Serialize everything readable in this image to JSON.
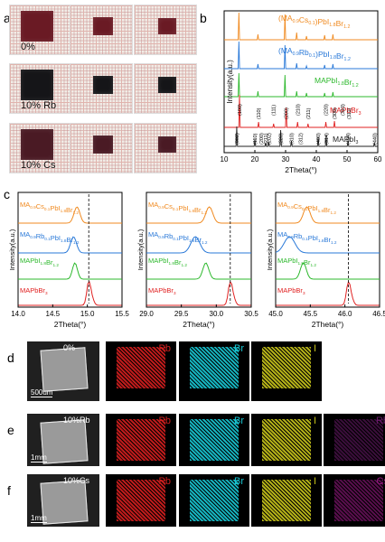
{
  "panel_a": {
    "label": "a",
    "rows": [
      {
        "caption": "0%",
        "crystal_color": "#6a1a24"
      },
      {
        "caption": "10% Rb",
        "crystal_color": "#151518"
      },
      {
        "caption": "10% Cs",
        "crystal_color": "#4a1a24"
      }
    ]
  },
  "panel_b": {
    "label": "b",
    "series_labels": [
      {
        "text": "(MA0.9Cs0.1)PbI1.8Br1.2",
        "color": "#f08a20"
      },
      {
        "text": "(MA0.9Rb0.1)PbI1.8Br1.2",
        "color": "#2878d8"
      },
      {
        "text": "MAPbI1.8Br1.2",
        "color": "#2cb82c"
      },
      {
        "text": "MAPbBr3",
        "color": "#e02020"
      },
      {
        "text": "MAPbI3",
        "color": "#222222"
      }
    ],
    "ylabel": "Intensity(a.u.)",
    "xlabel": "2Theta(°)",
    "xticks": [
      "10",
      "20",
      "30",
      "40",
      "50",
      "60"
    ],
    "red_hkl": [
      "(100)",
      "(110)",
      "(111)",
      "(200)",
      "(210)",
      "(211)",
      "(220)",
      "(300)",
      "(310)",
      "(311)"
    ],
    "black_hkl": [
      "(002)",
      "(110)",
      "(200)",
      "(211)",
      "(202)",
      "(220)",
      "(310)",
      "(312)",
      "(400)",
      "(314)",
      "(404)",
      "(440)"
    ]
  },
  "panel_c": {
    "label": "c",
    "ylabel": "Intensity(a.u.)",
    "xlabel": "2Theta(°)",
    "subplots": [
      {
        "xticks": [
          "14.0",
          "14.5",
          "15.0",
          "15.5"
        ]
      },
      {
        "xticks": [
          "29.0",
          "29.5",
          "30.0",
          "30.5"
        ]
      },
      {
        "xticks": [
          "45.0",
          "45.5",
          "46.0",
          "46.5"
        ]
      }
    ],
    "labels": {
      "cs": "MA0.9Cs0.1PbI1.8Br1.2",
      "rb": "MA0.9Rb0.1PbI1.8Br1.2",
      "mix": "MAPbI1.8Br1.2",
      "br": "MAPbBr3"
    }
  },
  "panel_d": {
    "label": "d",
    "caption": "0%",
    "scale": "500um",
    "elements": [
      "Pb",
      "Br",
      "I"
    ]
  },
  "panel_e": {
    "label": "e",
    "caption": "10%Rb",
    "scale": "1mm",
    "elements": [
      "Pb",
      "Br",
      "I",
      "Rb"
    ]
  },
  "panel_f": {
    "label": "f",
    "caption": "10%Cs",
    "scale": "1mm",
    "elements": [
      "Pb",
      "Br",
      "I",
      "Cs"
    ]
  },
  "colors": {
    "cs": "#f08a20",
    "rb": "#2878d8",
    "mix": "#2cb82c",
    "br": "#e02020",
    "i3": "#222222",
    "pb": "#d21f1f",
    "brmap": "#19c6d2",
    "imap": "#c6c21b",
    "rbmap": "#6a1a6a",
    "csmap": "#a01a8a"
  },
  "chart_data": [
    {
      "type": "line",
      "title": "",
      "xlabel": "2Theta(°)",
      "ylabel": "Intensity(a.u.)",
      "xlim": [
        10,
        60
      ],
      "series": [
        {
          "name": "(MA0.9Cs0.1)PbI1.8Br1.2",
          "peaks_2theta": [
            14.8,
            21.0,
            29.8,
            33.6,
            36.8,
            42.7,
            45.4
          ]
        },
        {
          "name": "(MA0.9Rb0.1)PbI1.8Br1.2",
          "peaks_2theta": [
            14.8,
            21.0,
            29.8,
            33.6,
            36.8,
            42.7,
            45.4
          ]
        },
        {
          "name": "MAPbI1.8Br1.2",
          "peaks_2theta": [
            14.8,
            21.0,
            29.8,
            33.6,
            36.8,
            42.7,
            45.4
          ]
        },
        {
          "name": "MAPbBr3",
          "peaks_2theta": [
            15.0,
            21.2,
            26.1,
            30.2,
            33.9,
            37.3,
            43.1,
            45.9
          ]
        },
        {
          "name": "MAPbI3",
          "peaks_2theta": [
            14.1,
            20.0,
            23.5,
            24.5,
            28.4,
            31.9,
            40.6,
            43.2,
            50.3,
            58.9
          ]
        }
      ]
    },
    {
      "type": "line",
      "xlabel": "2Theta(°)",
      "ylabel": "Intensity(a.u.)",
      "xlim": [
        14.0,
        15.5
      ],
      "series": [
        {
          "name": "MA0.9Cs0.1PbI1.8Br1.2",
          "peak": 14.85
        },
        {
          "name": "MA0.9Rb0.1PbI1.8Br1.2",
          "peak": 14.8
        },
        {
          "name": "MAPbI1.8Br1.2",
          "peak": 14.82
        },
        {
          "name": "MAPbBr3",
          "peak": 15.02
        }
      ]
    },
    {
      "type": "line",
      "xlabel": "2Theta(°)",
      "xlim": [
        29.0,
        30.5
      ],
      "series": [
        {
          "name": "MA0.9Cs0.1PbI1.8Br1.2",
          "peak": 29.9
        },
        {
          "name": "MA0.9Rb0.1PbI1.8Br1.2",
          "peak": 29.7
        },
        {
          "name": "MAPbI1.8Br1.2",
          "peak": 29.85
        },
        {
          "name": "MAPbBr3",
          "peak": 30.2
        }
      ]
    },
    {
      "type": "line",
      "xlabel": "2Theta(°)",
      "xlim": [
        45.0,
        46.5
      ],
      "series": [
        {
          "name": "MA0.9Cs0.1PbI1.8Br1.2",
          "peak": 45.45
        },
        {
          "name": "MA0.9Rb0.1PbI1.8Br1.2",
          "peak": 45.2
        },
        {
          "name": "MAPbI1.8Br1.2",
          "peak": 45.4
        },
        {
          "name": "MAPbBr3",
          "peak": 46.05
        }
      ]
    }
  ]
}
